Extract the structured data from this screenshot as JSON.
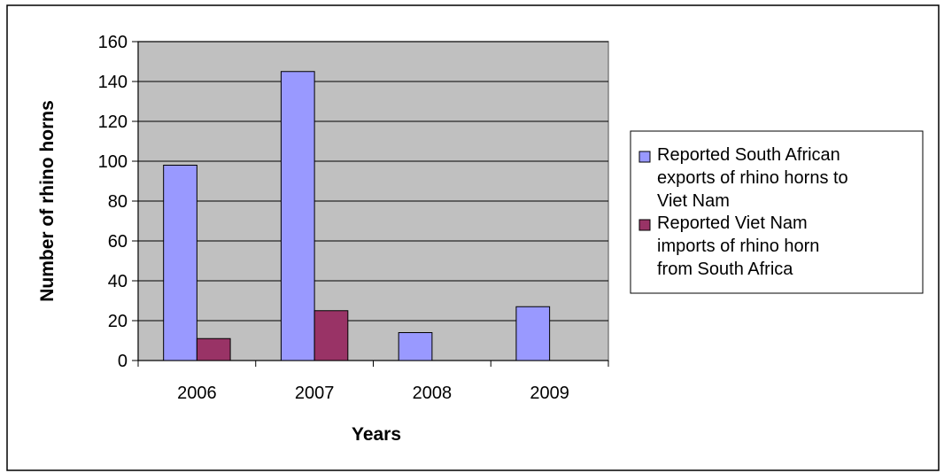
{
  "chart_data": {
    "type": "bar",
    "title": "",
    "xlabel": "Years",
    "ylabel": "Number of rhino horns",
    "categories": [
      "2006",
      "2007",
      "2008",
      "2009"
    ],
    "series": [
      {
        "name": "Reported South African exports of rhino horns to Viet Nam",
        "legend_lines": [
          "Reported South African",
          "exports of rhino horns to",
          "Viet Nam"
        ],
        "color": "#9999ff",
        "values": [
          98,
          145,
          14,
          27
        ]
      },
      {
        "name": "Reported Viet Nam imports of rhino horn from South Africa",
        "legend_lines": [
          "Reported Viet Nam",
          "imports of rhino horn",
          "from South Africa"
        ],
        "color": "#993366",
        "values": [
          11,
          25,
          null,
          null
        ]
      }
    ],
    "ylim": [
      0,
      160
    ],
    "yticks": [
      "0",
      "20",
      "40",
      "60",
      "80",
      "100",
      "120",
      "140",
      "160"
    ],
    "grid": true,
    "plot_background": "#c0c0c0",
    "legend_position": "right"
  }
}
